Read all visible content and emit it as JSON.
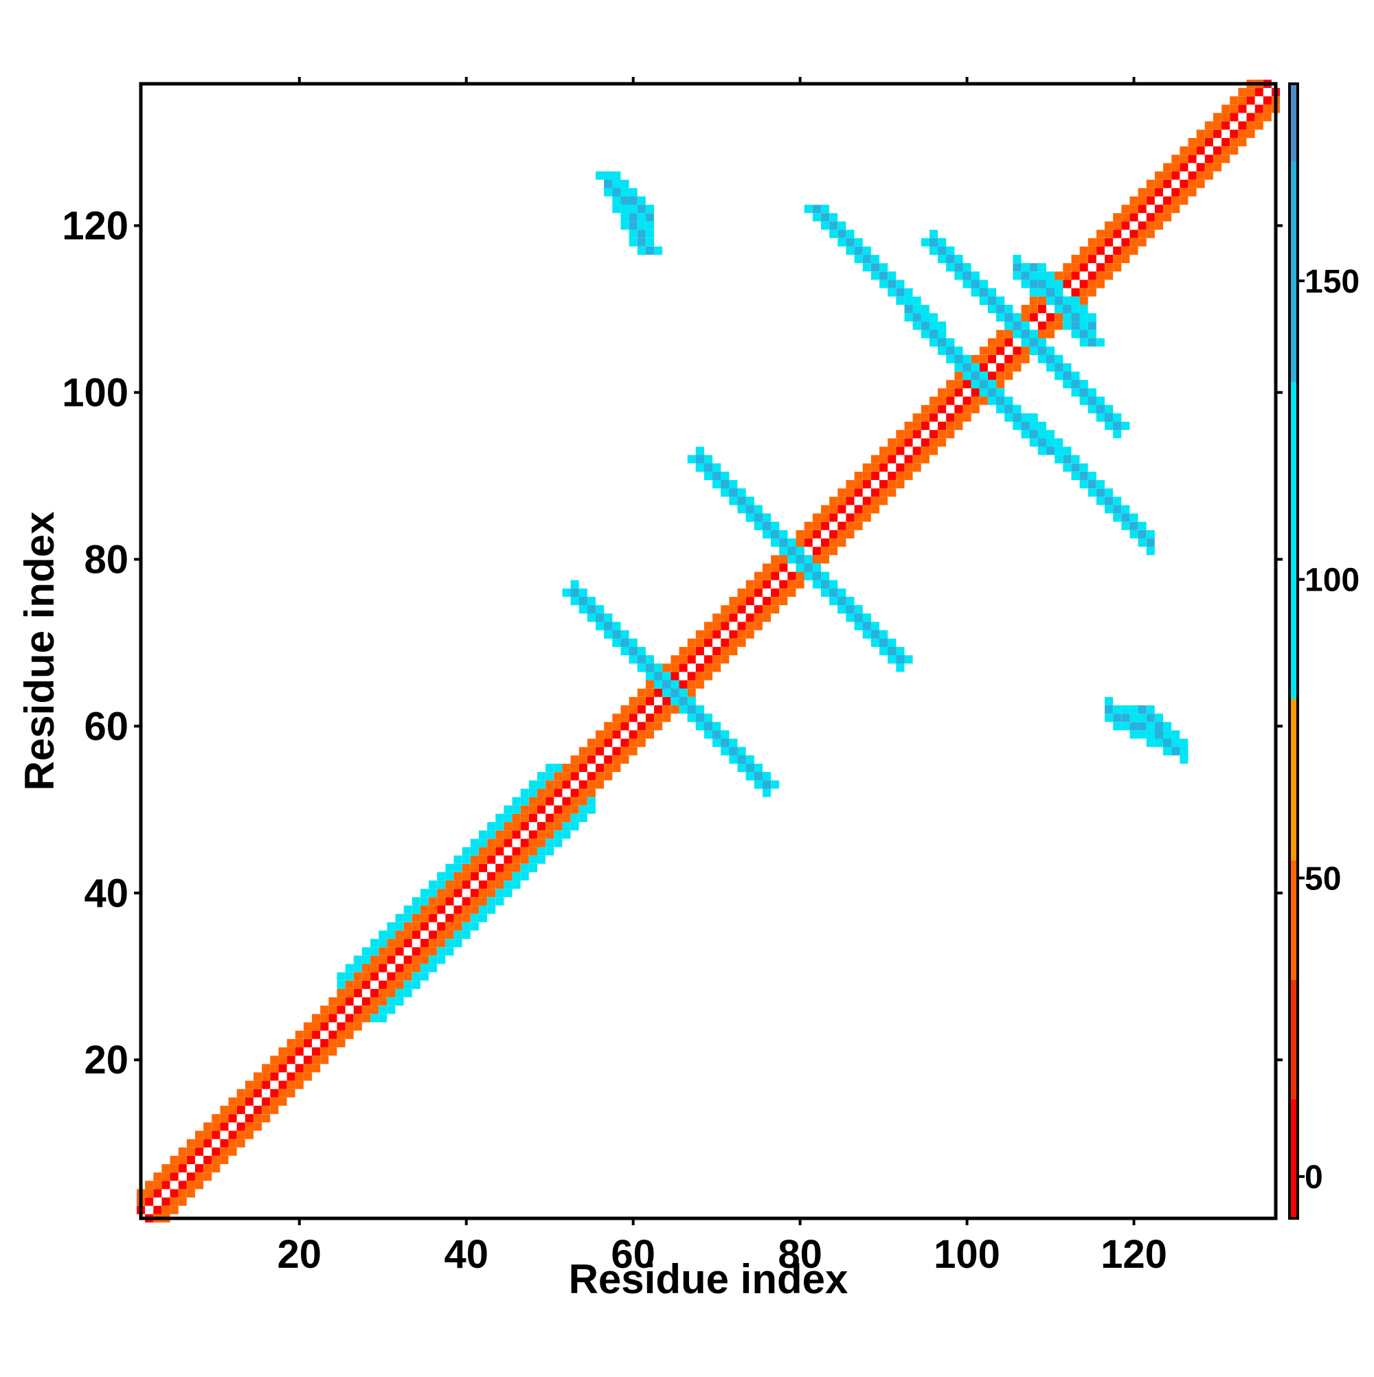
{
  "chart_data": {
    "type": "heatmap",
    "title": "",
    "xlabel": "Residue index",
    "ylabel": "Residue index",
    "xlim": [
      1,
      137
    ],
    "ylim": [
      1,
      137
    ],
    "x_ticks": [
      20,
      40,
      60,
      80,
      100,
      120
    ],
    "y_ticks": [
      20,
      40,
      60,
      80,
      100,
      120
    ],
    "colorbar": {
      "range": [
        -7,
        183
      ],
      "ticks": [
        0,
        50,
        100,
        150
      ],
      "bands": [
        {
          "from": -7,
          "to": 13,
          "color": "#ff0000"
        },
        {
          "from": 13,
          "to": 33,
          "color": "#ee3300"
        },
        {
          "from": 33,
          "to": 53,
          "color": "#ff6600"
        },
        {
          "from": 53,
          "to": 80,
          "color": "#ff9900"
        },
        {
          "from": 80,
          "to": 133,
          "color": "#00e5f5"
        },
        {
          "from": 133,
          "to": 170,
          "color": "#2ab0dc"
        },
        {
          "from": 170,
          "to": 183,
          "color": "#4a8cc8"
        }
      ]
    },
    "blocks": [
      {
        "region": "diagonal",
        "x": [
          1,
          137
        ],
        "y": [
          1,
          137
        ],
        "value": 35
      },
      {
        "region": "diagonal-flank",
        "x": [
          25,
          55
        ],
        "y": [
          25,
          55
        ],
        "value": 100
      },
      {
        "region": "antiparallel",
        "x": [
          53,
          76
        ],
        "y": [
          53,
          76
        ],
        "value": 160
      },
      {
        "region": "antiparallel",
        "x": [
          68,
          92
        ],
        "y": [
          68,
          92
        ],
        "value": 165
      },
      {
        "region": "antiparallel",
        "x": [
          82,
          110
        ],
        "y": [
          93,
          122
        ],
        "value": 155
      },
      {
        "region": "antiparallel",
        "x": [
          96,
          118
        ],
        "y": [
          96,
          118
        ],
        "value": 160
      },
      {
        "region": "antiparallel",
        "x": [
          57,
          62
        ],
        "y": [
          117,
          126
        ],
        "value": 150
      },
      {
        "region": "antiparallel",
        "x": [
          121,
          125
        ],
        "y": [
          57,
          62
        ],
        "value": 165
      },
      {
        "region": "antiparallel",
        "x": [
          108,
          115
        ],
        "y": [
          106,
          115
        ],
        "value": 150
      }
    ]
  }
}
